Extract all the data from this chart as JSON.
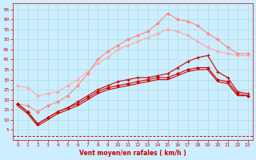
{
  "xlabel": "Vent moyen/en rafales ( km/h )",
  "background_color": "#cceeff",
  "grid_color": "#aadddd",
  "xlim": [
    -0.5,
    23.5
  ],
  "ylim": [
    0,
    68
  ],
  "yticks": [
    5,
    10,
    15,
    20,
    25,
    30,
    35,
    40,
    45,
    50,
    55,
    60,
    65
  ],
  "xticks": [
    0,
    1,
    2,
    3,
    4,
    5,
    6,
    7,
    8,
    9,
    10,
    11,
    12,
    13,
    14,
    15,
    16,
    17,
    18,
    19,
    20,
    21,
    22,
    23
  ],
  "line_pink2_x": [
    0,
    1,
    2,
    3,
    4,
    5,
    6,
    7,
    8,
    9,
    10,
    11,
    12,
    13,
    14,
    15,
    16,
    17,
    18,
    19,
    20,
    21,
    22,
    23
  ],
  "line_pink2_y": [
    27,
    26,
    22,
    23,
    24,
    27,
    30,
    34,
    38,
    41,
    45,
    47,
    49,
    51,
    53,
    55,
    54,
    52,
    49,
    46,
    44,
    43,
    42,
    42
  ],
  "line_pink2_color": "#ffaaaa",
  "line_pink2_marker": "D",
  "line_pink2_ms": 2.0,
  "line_pink1_x": [
    0,
    1,
    2,
    3,
    4,
    5,
    6,
    7,
    8,
    9,
    10,
    11,
    12,
    13,
    14,
    15,
    16,
    17,
    18,
    19,
    20,
    21,
    22,
    23
  ],
  "line_pink1_y": [
    18,
    17,
    14,
    17,
    19,
    22,
    27,
    33,
    40,
    44,
    47,
    50,
    52,
    54,
    58,
    63,
    60,
    59,
    57,
    53,
    50,
    46,
    43,
    43
  ],
  "line_pink1_color": "#ff8888",
  "line_pink1_marker": "D",
  "line_pink1_ms": 2.0,
  "line_dark1_x": [
    0,
    1,
    2,
    3,
    4,
    5,
    6,
    7,
    8,
    9,
    10,
    11,
    12,
    13,
    14,
    15,
    16,
    17,
    18,
    19,
    20,
    21,
    22,
    23
  ],
  "line_dark1_y": [
    18,
    14,
    8,
    11,
    14,
    16,
    18,
    21,
    24,
    26,
    27,
    28,
    29,
    30,
    31,
    31,
    33,
    35,
    36,
    36,
    30,
    29,
    23,
    22
  ],
  "line_dark1_color": "#cc0000",
  "line_dark1_marker": "D",
  "line_dark1_ms": 2.0,
  "line_dark2_x": [
    0,
    1,
    2,
    3,
    4,
    5,
    6,
    7,
    8,
    9,
    10,
    11,
    12,
    13,
    14,
    15,
    16,
    17,
    18,
    19,
    20,
    21,
    22,
    23
  ],
  "line_dark2_y": [
    18,
    14,
    8,
    11,
    14,
    16,
    19,
    22,
    25,
    27,
    29,
    30,
    31,
    31,
    32,
    33,
    36,
    39,
    41,
    42,
    34,
    31,
    24,
    23
  ],
  "line_dark2_color": "#cc0000",
  "line_dark2_marker": "+",
  "line_dark2_ms": 3.5,
  "line_dark3_x": [
    0,
    1,
    2,
    3,
    4,
    5,
    6,
    7,
    8,
    9,
    10,
    11,
    12,
    13,
    14,
    15,
    16,
    17,
    18,
    19,
    20,
    21,
    22,
    23
  ],
  "line_dark3_y": [
    17,
    13,
    7,
    10,
    13,
    15,
    17,
    20,
    23,
    25,
    26,
    27,
    28,
    29,
    30,
    30,
    32,
    34,
    35,
    35,
    29,
    28,
    22,
    22
  ],
  "line_dark3_color": "#cc0000",
  "line_dark3_marker": "None",
  "line_dark3_ms": 0,
  "dashed_y": 2,
  "dashed_color": "#cc0000"
}
